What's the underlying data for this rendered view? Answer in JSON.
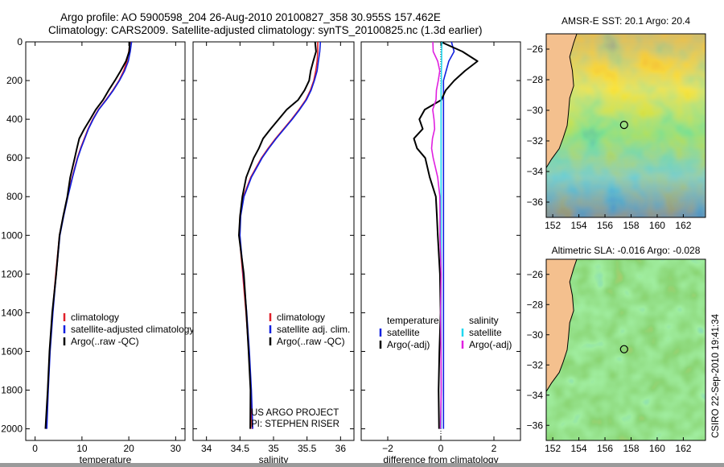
{
  "header": {
    "line1": "Argo profile: AO 5900598_204 26-Aug-2010 20100827_358 30.955S 157.462E",
    "line2": "Climatology: CARS2009. Satellite-adjusted climatology: synTS_20100825.nc (1.3d earlier)"
  },
  "footer": {
    "project": "US ARGO PROJECT",
    "pi": "PI: STEPHEN RISER",
    "stamp": "CSIRO 22-Sep-2010 19:41:34"
  },
  "colors": {
    "climatology": "#e0202a",
    "satellite": "#1020e0",
    "argo": "#000000",
    "diff_satellite_salinity": "#20d8f0",
    "diff_argo_salinity": "#e020e0",
    "land": "#f4c08e"
  },
  "chart_data": [
    {
      "type": "line",
      "id": "temperature",
      "xlabel": "temperature",
      "ylabel": "",
      "xlim": [
        -2,
        32
      ],
      "ylim": [
        2060,
        0
      ],
      "xticks": [
        0,
        10,
        20,
        30
      ],
      "yticks": [
        0,
        200,
        400,
        600,
        800,
        1000,
        1200,
        1400,
        1600,
        1800,
        2000
      ],
      "depth": [
        0,
        50,
        100,
        150,
        200,
        250,
        300,
        350,
        400,
        450,
        500,
        550,
        600,
        700,
        800,
        900,
        1000,
        1200,
        1400,
        1600,
        1800,
        2000
      ],
      "legend": [
        "climatology",
        "satellite-adjusted climatology",
        "Argo(..raw -QC)"
      ],
      "series": [
        {
          "name": "climatology",
          "color_key": "climatology",
          "values": [
            20.3,
            20.0,
            19.6,
            18.9,
            17.9,
            16.6,
            15.1,
            13.5,
            12.3,
            11.3,
            10.5,
            9.7,
            9.0,
            7.9,
            6.9,
            6.0,
            5.2,
            4.4,
            3.7,
            3.1,
            2.7,
            2.4
          ]
        },
        {
          "name": "satellite-adjusted climatology",
          "color_key": "satellite",
          "values": [
            20.6,
            20.3,
            19.9,
            19.1,
            18.0,
            16.7,
            15.2,
            13.6,
            12.4,
            11.4,
            10.6,
            9.8,
            9.1,
            8.0,
            7.0,
            6.1,
            5.3,
            4.5,
            3.8,
            3.2,
            2.8,
            2.5
          ]
        },
        {
          "name": "Argo(..raw -QC)",
          "color_key": "argo",
          "values": [
            20.2,
            20.0,
            19.5,
            18.2,
            17.0,
            15.8,
            14.4,
            13.0,
            11.8,
            10.4,
            9.5,
            8.9,
            8.4,
            7.6,
            6.8,
            6.0,
            5.3,
            4.4,
            3.7,
            3.1,
            2.6,
            2.3
          ]
        }
      ]
    },
    {
      "type": "line",
      "id": "salinity",
      "xlabel": "salinity",
      "ylabel": "",
      "xlim": [
        33.8,
        36.2
      ],
      "ylim": [
        2060,
        0
      ],
      "xticks": [
        34,
        34.5,
        35,
        35.5,
        36
      ],
      "xticklabels": [
        "34",
        "34.5",
        "35",
        "35.5",
        "36"
      ],
      "depth": [
        0,
        50,
        100,
        150,
        200,
        250,
        300,
        350,
        400,
        450,
        500,
        550,
        600,
        700,
        800,
        900,
        1000,
        1200,
        1400,
        1600,
        1800,
        2000
      ],
      "legend": [
        "climatology",
        "satellite adj. clim.",
        "Argo(..raw -QC)"
      ],
      "series": [
        {
          "name": "climatology",
          "color_key": "climatology",
          "values": [
            35.66,
            35.66,
            35.65,
            35.63,
            35.6,
            35.55,
            35.48,
            35.38,
            35.27,
            35.15,
            35.03,
            34.92,
            34.82,
            34.66,
            34.55,
            34.5,
            34.49,
            34.54,
            34.59,
            34.63,
            34.66,
            34.68
          ]
        },
        {
          "name": "satellite adj. clim.",
          "color_key": "satellite",
          "values": [
            35.7,
            35.69,
            35.67,
            35.65,
            35.61,
            35.56,
            35.49,
            35.39,
            35.28,
            35.16,
            35.04,
            34.93,
            34.83,
            34.67,
            34.56,
            34.51,
            34.5,
            34.55,
            34.6,
            34.64,
            34.67,
            34.69
          ]
        },
        {
          "name": "Argo(..raw -QC)",
          "color_key": "argo",
          "values": [
            35.62,
            35.63,
            35.6,
            35.55,
            35.53,
            35.47,
            35.36,
            35.2,
            35.08,
            34.95,
            34.85,
            34.78,
            34.7,
            34.6,
            34.53,
            34.5,
            34.49,
            34.55,
            34.6,
            34.63,
            34.65,
            34.66
          ]
        }
      ]
    },
    {
      "type": "line",
      "id": "difference",
      "xlabel": "difference from climatology",
      "ylabel": "",
      "xlim": [
        -3,
        3
      ],
      "ylim": [
        2060,
        0
      ],
      "xticks": [
        -2,
        0,
        2
      ],
      "xticklabels": [
        "−2",
        "0",
        "2"
      ],
      "depth": [
        0,
        50,
        100,
        150,
        200,
        250,
        300,
        350,
        400,
        450,
        500,
        550,
        600,
        700,
        800,
        900,
        1000,
        1200,
        1400,
        1600,
        1800,
        2000
      ],
      "legend_left_title": "temperature",
      "legend_right_title": "salinity",
      "legend": [
        "satellite",
        "Argo(-adj)",
        "satellite",
        "Argo(-adj)"
      ],
      "series": [
        {
          "name": "satellite",
          "group": "temperature",
          "color_key": "satellite",
          "values": [
            0.4,
            0.5,
            0.3,
            0.2,
            0.1,
            0.1,
            0.1,
            0.1,
            0.1,
            0.1,
            0.1,
            0.1,
            0.1,
            0.1,
            0.1,
            0.1,
            0.1,
            0.1,
            0.1,
            0.1,
            0.1,
            0.1
          ]
        },
        {
          "name": "Argo(-adj)",
          "group": "temperature",
          "color_key": "argo",
          "values": [
            0.0,
            0.8,
            1.4,
            0.9,
            0.5,
            0.2,
            0.0,
            -0.6,
            -0.8,
            -0.7,
            -1.0,
            -0.9,
            -0.6,
            -0.4,
            -0.2,
            -0.15,
            -0.1,
            -0.05,
            0.0,
            -0.05,
            -0.1,
            -0.05
          ]
        },
        {
          "name": "satellite",
          "group": "salinity",
          "color_key": "diff_satellite_salinity",
          "values": [
            0.04,
            0.03,
            0.03,
            0.02,
            0.02,
            0.01,
            0.01,
            0.01,
            0.01,
            0.01,
            0.01,
            0.01,
            0.01,
            0.01,
            0.01,
            0.01,
            0.01,
            0.01,
            0.01,
            0.01,
            0.01,
            0.01
          ]
        },
        {
          "name": "Argo(-adj)",
          "group": "salinity",
          "color_key": "diff_argo_salinity",
          "values": [
            -0.3,
            -0.3,
            -0.1,
            -0.05,
            -0.1,
            -0.15,
            -0.2,
            -0.3,
            -0.25,
            -0.25,
            -0.3,
            -0.35,
            -0.3,
            -0.1,
            -0.05,
            -0.03,
            -0.02,
            -0.01,
            0.0,
            0.01,
            0.0,
            0.0
          ]
        }
      ]
    },
    {
      "type": "heatmap",
      "id": "sst_map",
      "title": "AMSR-E SST: 20.1 Argo: 20.4",
      "xlim": [
        151.5,
        163.7
      ],
      "ylim": [
        -37,
        -25
      ],
      "xticks": [
        152,
        154,
        156,
        158,
        160,
        162
      ],
      "yticks": [
        -26,
        -28,
        -30,
        -32,
        -34,
        -36
      ],
      "float_position": {
        "lon": 157.462,
        "lat": -30.955
      }
    },
    {
      "type": "heatmap",
      "id": "sla_map",
      "title": "Altimetric SLA: -0.016 Argo: -0.028",
      "xlim": [
        151.5,
        163.7
      ],
      "ylim": [
        -37,
        -25
      ],
      "xticks": [
        152,
        154,
        156,
        158,
        160,
        162
      ],
      "yticks": [
        -26,
        -28,
        -30,
        -32,
        -34,
        -36
      ],
      "float_position": {
        "lon": 157.462,
        "lat": -30.955
      }
    }
  ]
}
